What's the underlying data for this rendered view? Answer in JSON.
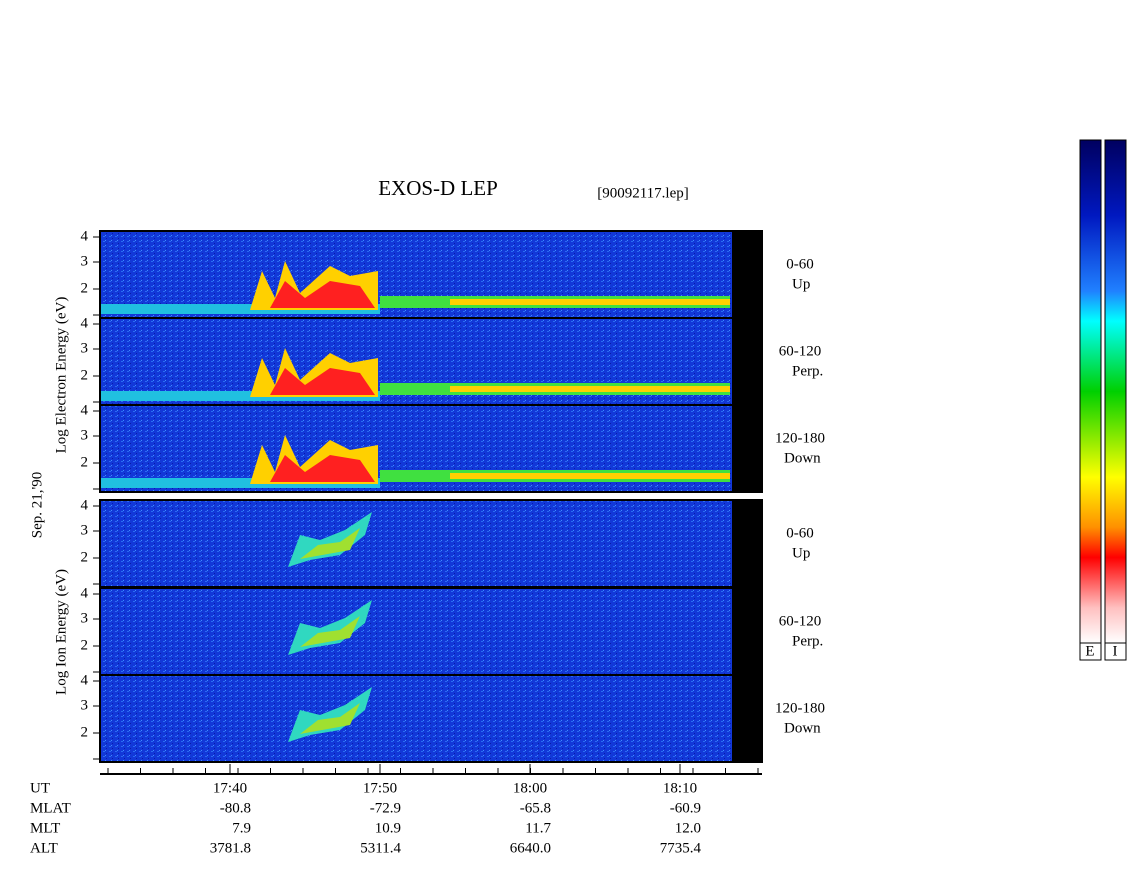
{
  "header": {
    "title": "EXOS-D LEP",
    "file": "[90092117.lep]"
  },
  "panels": {
    "date": "Sep. 21,'90",
    "electron_label": "Log Electron Energy (eV)",
    "ion_label": "Log Ion Energy (eV)",
    "energy_ticks": [
      "4",
      "3",
      "2"
    ],
    "pitch_angles": [
      {
        "range": "0-60",
        "name": "Up"
      },
      {
        "range": "60-120",
        "name": "Perp."
      },
      {
        "range": "120-180",
        "name": "Down"
      }
    ]
  },
  "time_axis": {
    "row_labels": [
      "UT",
      "MLAT",
      "MLT",
      "ALT"
    ],
    "columns": [
      [
        "17:40",
        "-80.8",
        "7.9",
        "3781.8"
      ],
      [
        "17:50",
        "-72.9",
        "10.9",
        "5311.4"
      ],
      [
        "18:00",
        "-65.8",
        "11.7",
        "6640.0"
      ],
      [
        "18:10",
        "-60.9",
        "12.0",
        "7735.4"
      ]
    ]
  },
  "color_bar": {
    "labels": [
      "E",
      "I"
    ]
  }
}
